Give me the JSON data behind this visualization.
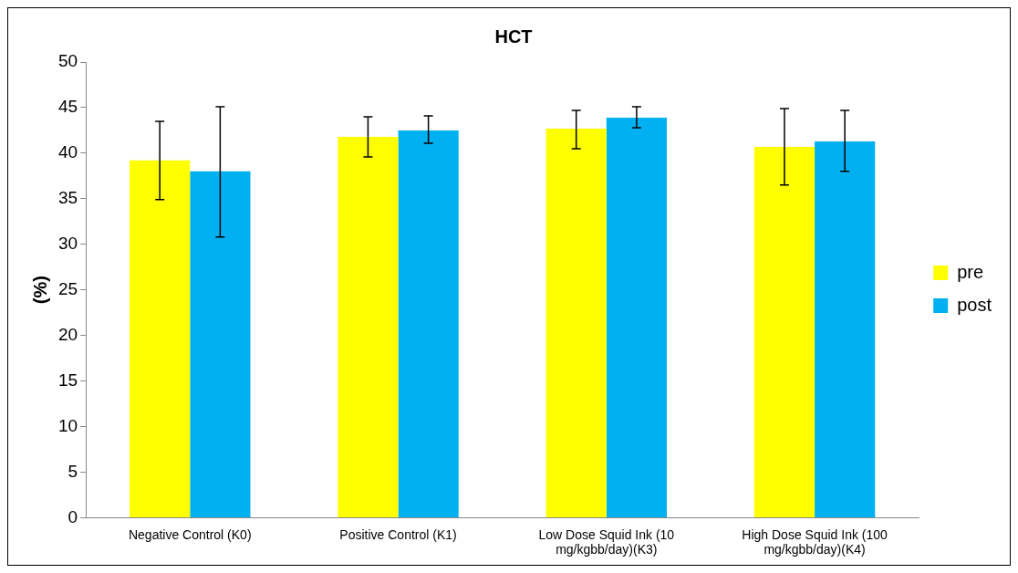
{
  "chart_data": {
    "type": "bar",
    "title": "HCT",
    "ylabel": "(%)",
    "categories": [
      "Negative Control (K0)",
      "Positive Control (K1)",
      "Low Dose Squid Ink (10 mg/kgbb/day)(K3)",
      "High Dose Squid Ink (100 mg/kgbb/day)(K4)"
    ],
    "series": [
      {
        "name": "pre",
        "color": "#ffff00",
        "values": [
          39.2,
          41.8,
          42.7,
          40.7
        ],
        "errors": [
          [
            34.9,
            43.5
          ],
          [
            39.6,
            44.0
          ],
          [
            40.5,
            44.7
          ],
          [
            36.5,
            44.9
          ]
        ]
      },
      {
        "name": "post",
        "color": "#00b0f0",
        "values": [
          38.0,
          42.5,
          43.9,
          41.3
        ],
        "errors": [
          [
            30.8,
            45.1
          ],
          [
            41.1,
            44.1
          ],
          [
            42.8,
            45.1
          ],
          [
            38.0,
            44.7
          ]
        ]
      }
    ],
    "ylim": [
      0,
      50
    ],
    "yticks": [
      0,
      5,
      10,
      15,
      20,
      25,
      30,
      35,
      40,
      45,
      50
    ],
    "grid": false,
    "legend": "right"
  }
}
